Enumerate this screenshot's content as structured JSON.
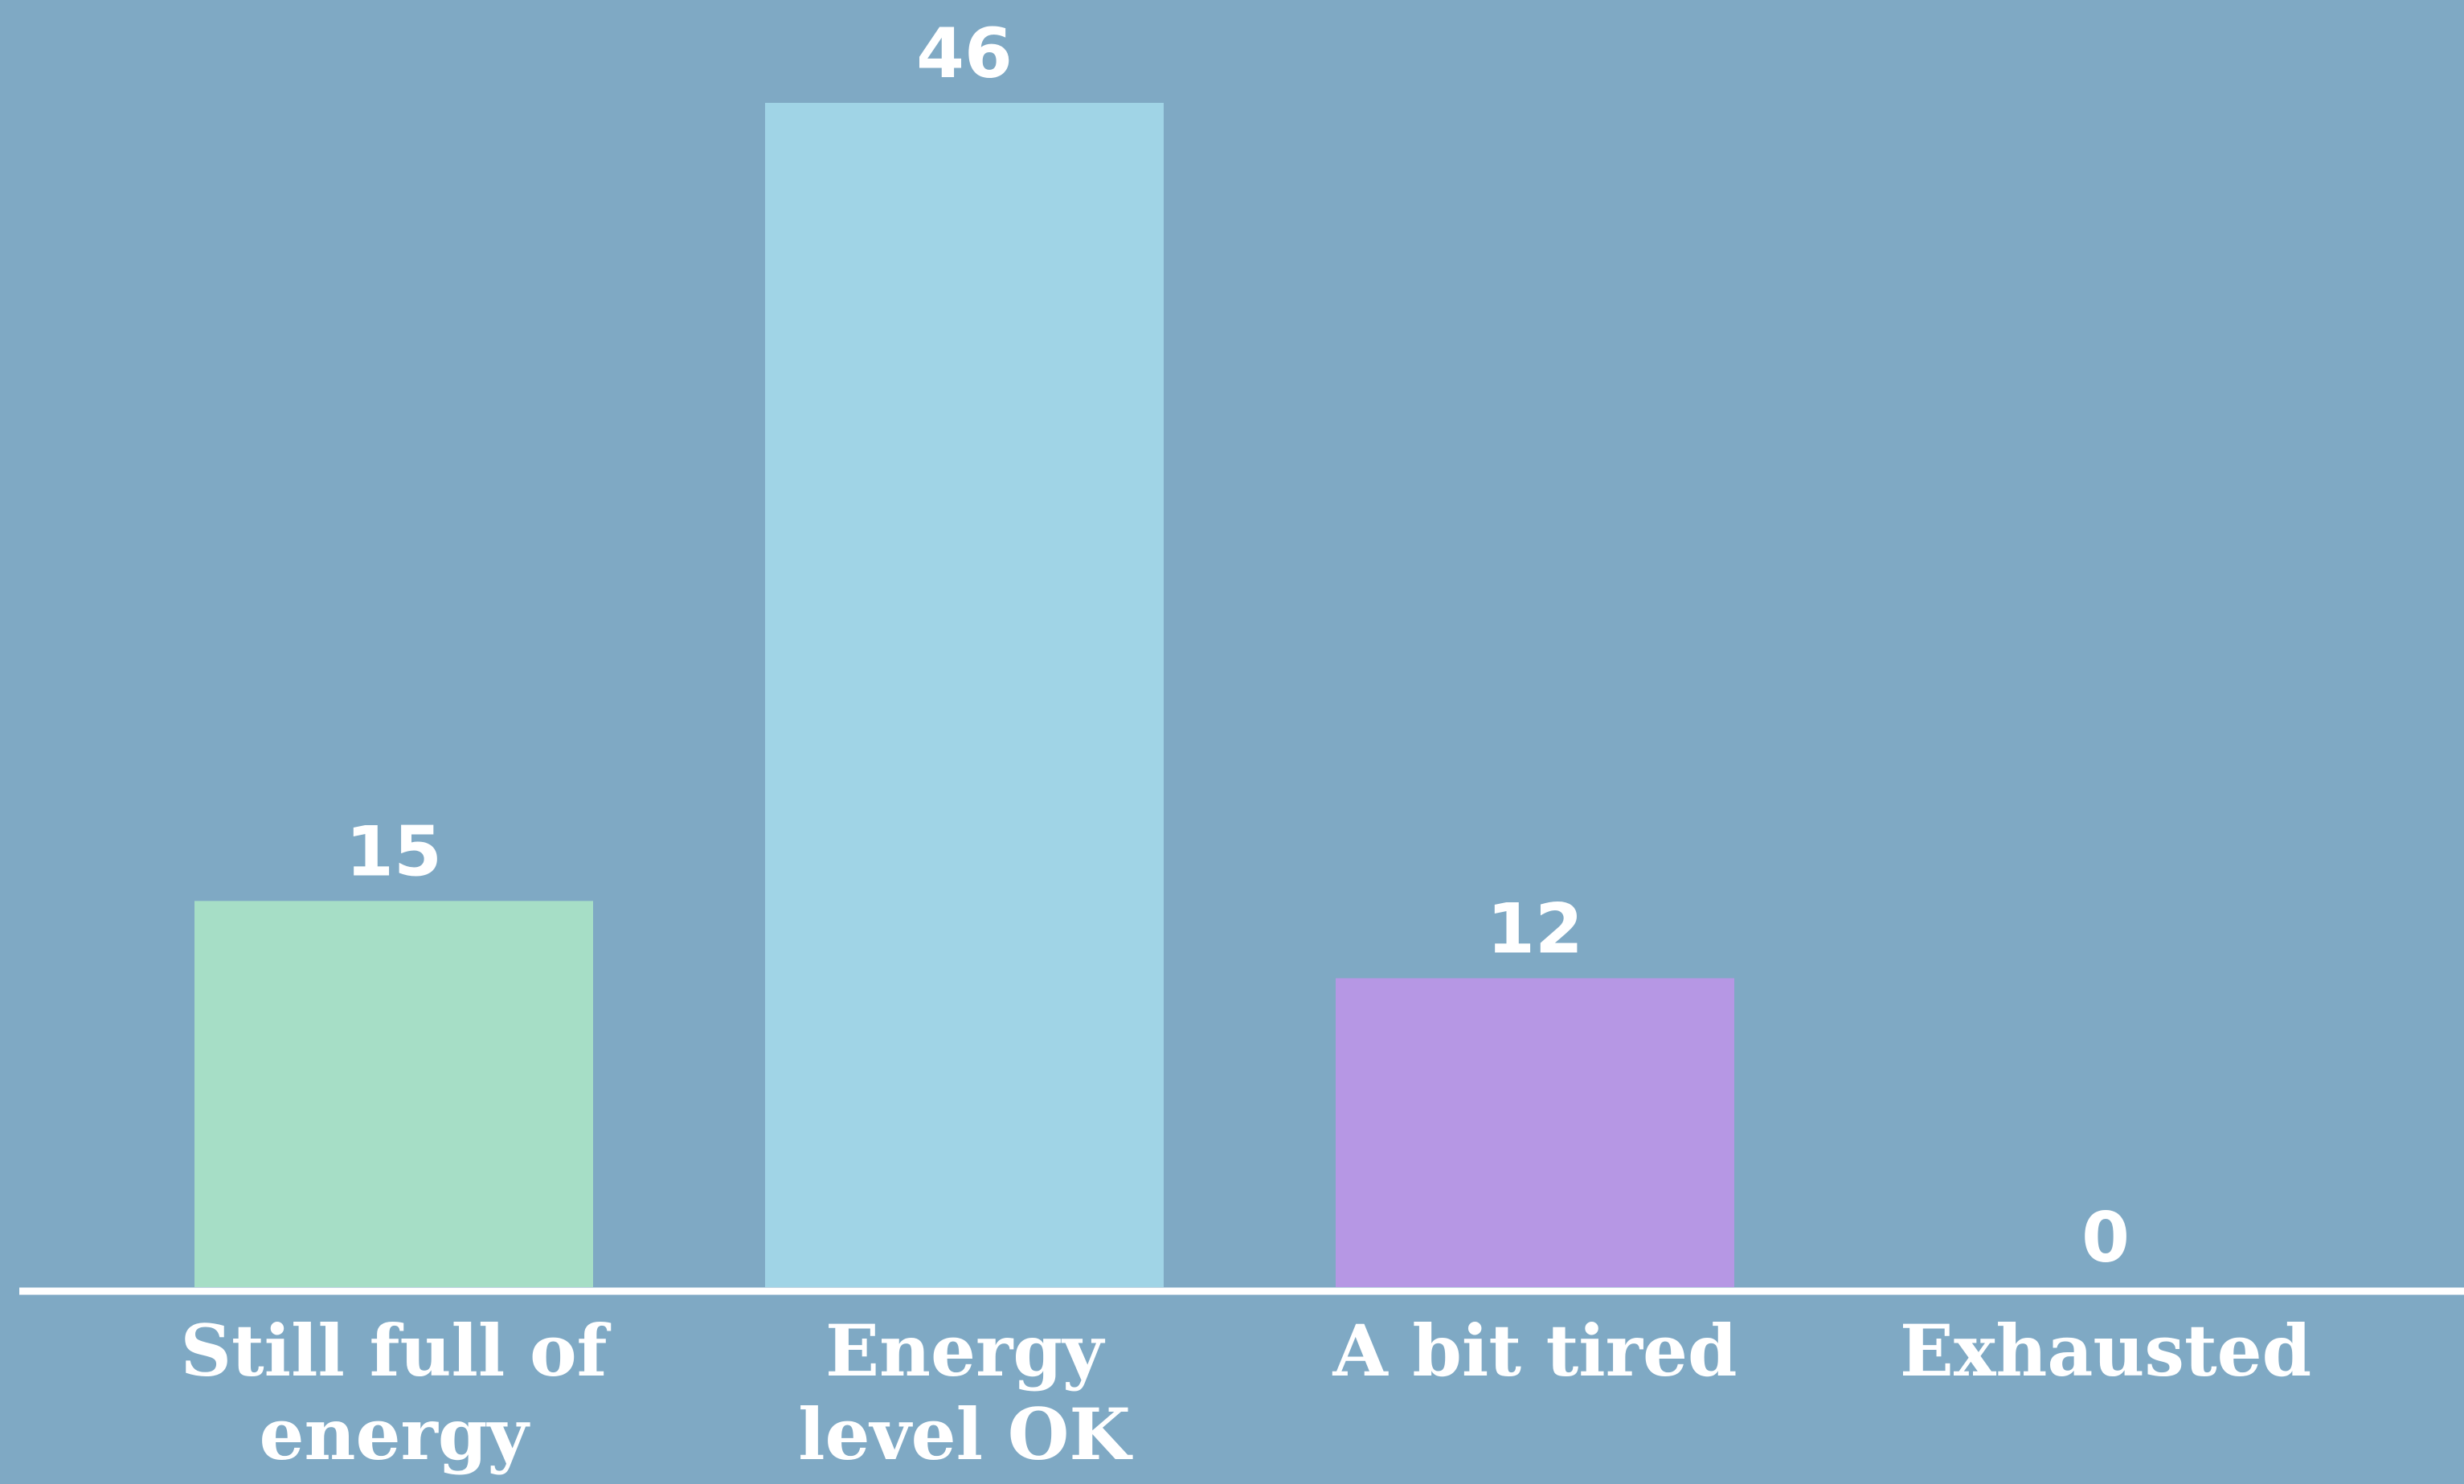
{
  "chart_data": {
    "type": "bar",
    "title": "",
    "xlabel": "",
    "ylabel": "",
    "categories": [
      [
        "Still full of",
        "energy"
      ],
      [
        "Energy",
        "level OK"
      ],
      [
        "A bit tired"
      ],
      [
        "Exhausted"
      ]
    ],
    "values": [
      15,
      46,
      12,
      0
    ],
    "value_labels": [
      "15",
      "46",
      "12",
      "0"
    ],
    "ylim": [
      0,
      46
    ],
    "grid": false,
    "legend": "none",
    "colors": [
      "#a6dec6",
      "#a0d4e6",
      "#b697e4",
      "#a0d4e6"
    ],
    "background_color": "#7fa9c4",
    "axis_color": "#ffffff",
    "text_color": "#ffffff"
  }
}
